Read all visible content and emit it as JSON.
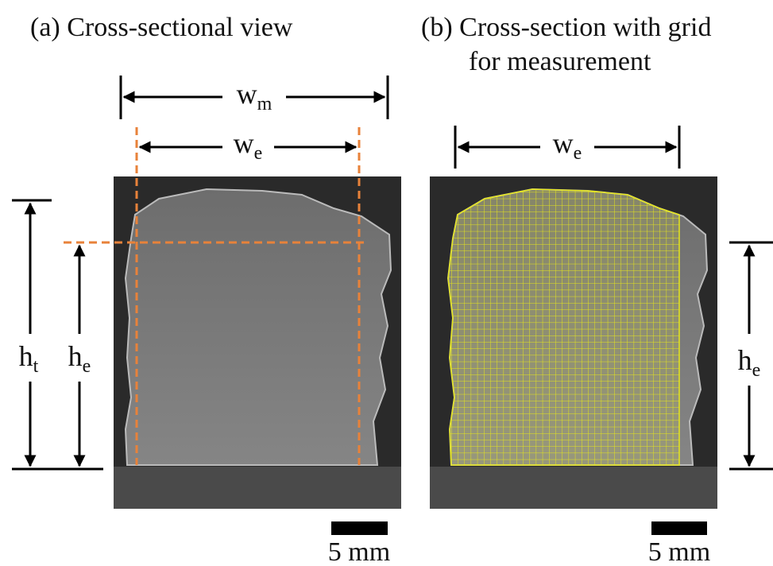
{
  "panels": [
    {
      "title": [
        "(a) Cross-sectional view"
      ],
      "labels": {
        "wm": {
          "main": "w",
          "sub": "m"
        },
        "we": {
          "main": "w",
          "sub": "e"
        },
        "ht": {
          "main": "h",
          "sub": "t"
        },
        "he": {
          "main": "h",
          "sub": "e"
        }
      },
      "scale_bar": "5 mm"
    },
    {
      "title": [
        "(b) Cross-section with grid",
        "for measurement"
      ],
      "labels": {
        "we": {
          "main": "w",
          "sub": "e"
        },
        "he": {
          "main": "h",
          "sub": "e"
        }
      },
      "scale_bar": "5 mm"
    }
  ]
}
